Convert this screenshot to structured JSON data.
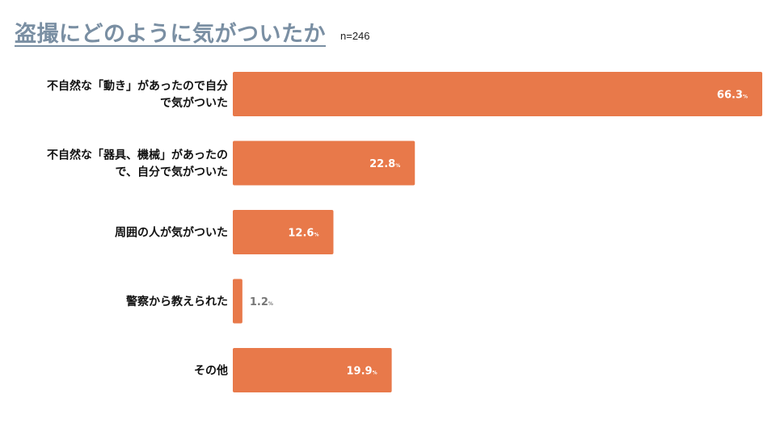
{
  "title": "盗撮にどのように気がついたか",
  "sample": "n=246",
  "colors": {
    "bar": "#e8794a",
    "title": "#7a8fa3",
    "label_inside": "#ffffff",
    "label_outside": "#777777"
  },
  "chart_data": {
    "type": "bar",
    "orientation": "horizontal",
    "title": "盗撮にどのように気がついたか",
    "unit": "%",
    "xlim": [
      0,
      66.3
    ],
    "categories": [
      [
        "不自然な「動き」があったので自分",
        "で気がついた"
      ],
      [
        "不自然な「器具、機械」があったの",
        "で、自分で気がついた"
      ],
      [
        "周囲の人が気がついた"
      ],
      [
        "警察から教えられた"
      ],
      [
        "その他"
      ]
    ],
    "values": [
      66.3,
      22.8,
      12.6,
      1.2,
      19.9
    ]
  }
}
